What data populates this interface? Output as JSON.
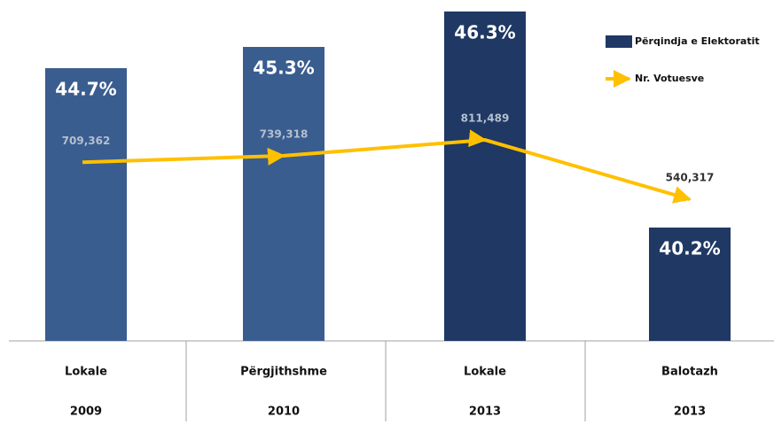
{
  "chart_data": {
    "type": "bar-line",
    "categories": [
      [
        "Lokale",
        "2009"
      ],
      [
        "Përgjithshme",
        "2010"
      ],
      [
        "Lokale",
        "2013"
      ],
      [
        "Balotazh",
        "2013"
      ]
    ],
    "series": [
      {
        "name": "Përqindja e Elektoratit",
        "type": "bar",
        "colors": [
          "#3a5d8f",
          "#3a5d8f",
          "#1f3864",
          "#1f3864"
        ],
        "color": "#1f3864",
        "values": [
          44.7,
          45.3,
          46.3,
          40.2
        ],
        "value_labels": [
          "44.7%",
          "45.3%",
          "46.3%",
          "40.2%"
        ]
      },
      {
        "name": "Nr. Votuesve",
        "type": "line",
        "axis": "y2",
        "color": "#ffc000",
        "values": [
          709362,
          739318,
          811489,
          540317
        ],
        "value_labels": [
          "709,362",
          "739,318",
          "811,489",
          "540,317"
        ]
      }
    ],
    "ylim": [
      37,
      46.6
    ],
    "y2lim": [
      -107000,
      1447000
    ]
  }
}
